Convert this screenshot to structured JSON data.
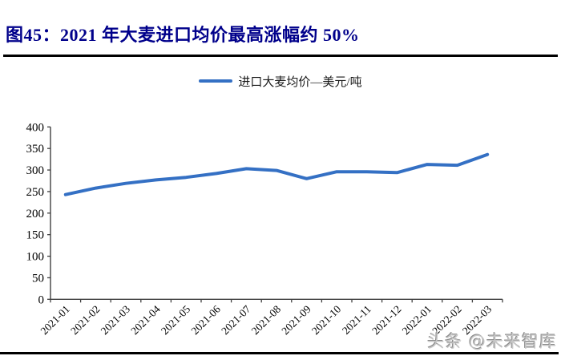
{
  "header": {
    "title": "图45：2021 年大麦进口均价最高涨幅约 50%",
    "title_color": "#00008B"
  },
  "legend": {
    "label": "进口大麦均价—美元/吨"
  },
  "watermark": {
    "text": "头条 @未来智库"
  },
  "colors": {
    "line": "#3470C4",
    "axis": "#404040",
    "tick_label": "#000000"
  },
  "chart_data": {
    "type": "line",
    "title": "2021 年大麦进口均价最高涨幅约 50%",
    "categories": [
      "2021-01",
      "2021-02",
      "2021-03",
      "2021-04",
      "2021-05",
      "2021-06",
      "2021-07",
      "2021-08",
      "2021-09",
      "2021-10",
      "2021-11",
      "2021-12",
      "2022-01",
      "2022-02",
      "2022-03"
    ],
    "series": [
      {
        "name": "进口大麦均价—美元/吨",
        "color": "#3470C4",
        "values": [
          243,
          258,
          269,
          277,
          283,
          292,
          303,
          299,
          280,
          296,
          296,
          294,
          313,
          311,
          336
        ]
      }
    ],
    "xlabel": "",
    "ylabel": "美元/吨",
    "ylim": [
      0,
      400
    ],
    "ytick_step": 50,
    "grid": false,
    "legend_position": "top"
  }
}
